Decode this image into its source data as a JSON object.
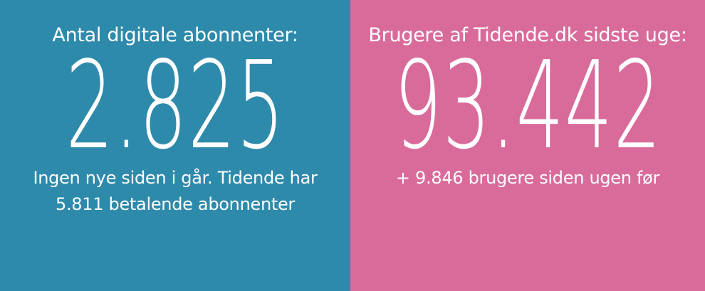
{
  "colors": {
    "left_bg": "#2e8aab",
    "right_bg": "#d96b9b",
    "text": "#ffffff"
  },
  "left": {
    "heading": "Antal digitale abonnenter:",
    "value": "2.825",
    "sub": "Ingen nye siden i går. Tidende har\n5.811 betalende abonnenter"
  },
  "right": {
    "heading": "Brugere af Tidende.dk sidste uge:",
    "value": "93.442",
    "sub": "+ 9.846 brugere siden ugen før"
  }
}
